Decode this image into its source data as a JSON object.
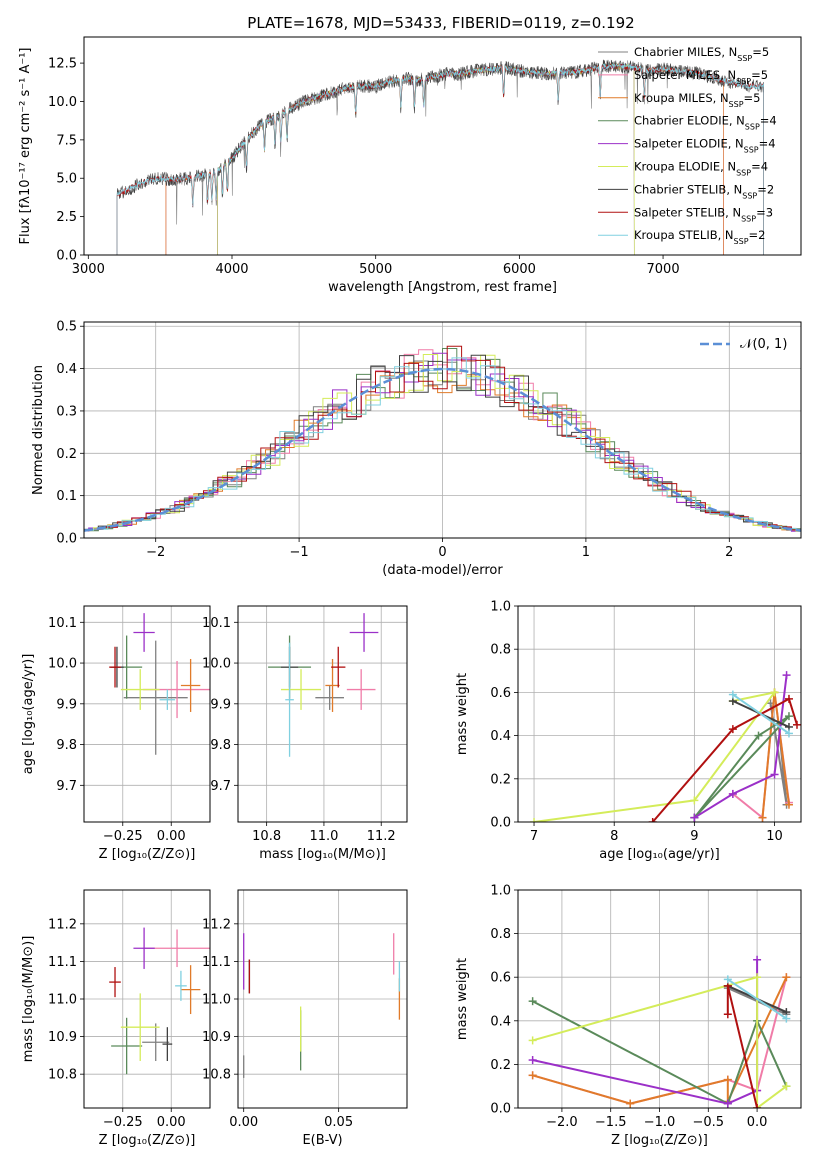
{
  "figure_title": "PLATE=1678, MJD=53433, FIBERID=0119, z=0.192",
  "colors": {
    "Chabrier MILES": "#808080",
    "Salpeter MILES": "#f07ca8",
    "Kroupa MILES": "#e07b2a",
    "Chabrier ELODIE": "#5a8a5a",
    "Salpeter ELODIE": "#9b30c8",
    "Kroupa ELODIE": "#d4ec5a",
    "Chabrier STELIB": "#404040",
    "Salpeter STELIB": "#b01010",
    "Kroupa STELIB": "#80d0e0",
    "normal": "#5b8fd6"
  },
  "chart_data": [
    {
      "id": "spectrum",
      "type": "line",
      "xlabel": "wavelength [Angstrom, rest frame]",
      "ylabel": "Flux [fλ10⁻¹⁷ erg cm⁻² s⁻¹ A⁻¹]",
      "xlim": [
        2970,
        7960
      ],
      "ylim": [
        0,
        14.2
      ],
      "xticks": [
        3000,
        4000,
        5000,
        6000,
        7000
      ],
      "yticks": [
        "0.0",
        "2.5",
        "5.0",
        "7.5",
        "10.0",
        "12.5"
      ],
      "legend_position": "right",
      "legend": [
        {
          "label": "Chabrier MILES, N",
          "sub": "SSP",
          "tail": "=5",
          "color_key": "Chabrier MILES"
        },
        {
          "label": "Salpeter MILES, N",
          "sub": "SSP",
          "tail": "=5",
          "color_key": "Salpeter MILES"
        },
        {
          "label": "Kroupa MILES, N",
          "sub": "SSP",
          "tail": "=5",
          "color_key": "Kroupa MILES"
        },
        {
          "label": "Chabrier ELODIE, N",
          "sub": "SSP",
          "tail": "=4",
          "color_key": "Chabrier ELODIE"
        },
        {
          "label": "Salpeter ELODIE, N",
          "sub": "SSP",
          "tail": "=4",
          "color_key": "Salpeter ELODIE"
        },
        {
          "label": "Kroupa ELODIE, N",
          "sub": "SSP",
          "tail": "=4",
          "color_key": "Kroupa ELODIE"
        },
        {
          "label": "Chabrier STELIB, N",
          "sub": "SSP",
          "tail": "=2",
          "color_key": "Chabrier STELIB"
        },
        {
          "label": "Salpeter STELIB, N",
          "sub": "SSP",
          "tail": "=3",
          "color_key": "Salpeter STELIB"
        },
        {
          "label": "Kroupa STELIB, N",
          "sub": "SSP",
          "tail": "=2",
          "color_key": "Kroupa STELIB"
        }
      ],
      "continuum": {
        "x": [
          3200,
          3300,
          3400,
          3500,
          3600,
          3700,
          3800,
          3900,
          4000,
          4100,
          4200,
          4300,
          4400,
          4500,
          4600,
          4700,
          4800,
          4900,
          5000,
          5100,
          5200,
          5300,
          5400,
          5500,
          5600,
          5700,
          5800,
          5900,
          6000,
          6100,
          6200,
          6300,
          6400,
          6500,
          6600,
          6700,
          6800,
          6900,
          7000,
          7100,
          7200,
          7300,
          7400,
          7500,
          7600
        ],
        "y": [
          3.9,
          4.4,
          4.8,
          5.0,
          4.9,
          5.0,
          5.2,
          5.5,
          6.3,
          7.5,
          8.5,
          9.0,
          9.5,
          10.0,
          10.3,
          10.6,
          10.9,
          11.0,
          11.0,
          11.3,
          11.5,
          11.4,
          11.6,
          11.8,
          11.8,
          12.0,
          12.1,
          12.2,
          12.0,
          11.9,
          11.8,
          11.9,
          11.9,
          12.1,
          12.3,
          12.3,
          12.2,
          12.0,
          12.1,
          12.0,
          11.9,
          11.7,
          11.4,
          11.2,
          11.0
        ]
      },
      "series_ranges": [
        {
          "name": "Chabrier MILES",
          "x_start": 3540,
          "x_end": 7420
        },
        {
          "name": "Salpeter MILES",
          "x_start": 3540,
          "x_end": 7420
        },
        {
          "name": "Kroupa MILES",
          "x_start": 3540,
          "x_end": 7420
        },
        {
          "name": "Chabrier ELODIE",
          "x_start": 3900,
          "x_end": 6800
        },
        {
          "name": "Salpeter ELODIE",
          "x_start": 3900,
          "x_end": 6800
        },
        {
          "name": "Kroupa ELODIE",
          "x_start": 3900,
          "x_end": 6800
        },
        {
          "name": "Chabrier STELIB",
          "x_start": 3200,
          "x_end": 7700
        },
        {
          "name": "Salpeter STELIB",
          "x_start": 3200,
          "x_end": 7700
        },
        {
          "name": "Kroupa STELIB",
          "x_start": 3200,
          "x_end": 7700
        }
      ]
    },
    {
      "id": "residuals",
      "type": "histogram",
      "xlabel": "(data-model)/error",
      "ylabel": "Normed distribution",
      "xlim": [
        -2.5,
        2.5
      ],
      "ylim": [
        0,
        0.51
      ],
      "xticks": [
        "−2",
        "−1",
        "0",
        "1",
        "2"
      ],
      "yticks": [
        "0.0",
        "0.1",
        "0.2",
        "0.3",
        "0.4",
        "0.5"
      ],
      "grid": true,
      "legend_position": "top-right",
      "normal_label": "𝒩(0, 1)",
      "bin_width": 0.1
    },
    {
      "id": "z-age",
      "type": "scatter",
      "xlabel": "Z [log₁₀(Z/Z⊙)]",
      "ylabel": "age  [log₁₀(age/yr)]",
      "xlim": [
        -0.45,
        0.2
      ],
      "ylim": [
        9.61,
        10.14
      ],
      "xticks": [
        "−0.25",
        "0.00"
      ],
      "yticks": [
        "9.7",
        "9.8",
        "9.9",
        "10.0",
        "10.1"
      ],
      "grid": true,
      "points": [
        {
          "s": "Chabrier MILES",
          "x": -0.08,
          "y": 9.915,
          "xe": 0.33,
          "ye": 0.28
        },
        {
          "s": "Salpeter MILES",
          "x": 0.03,
          "y": 9.935,
          "xe": 0.35,
          "ye": 0.14
        },
        {
          "s": "Kroupa MILES",
          "x": 0.1,
          "y": 9.945,
          "xe": 0.1,
          "ye": 0.13
        },
        {
          "s": "Chabrier ELODIE",
          "x": -0.23,
          "y": 9.99,
          "xe": 0.16,
          "ye": 0.155
        },
        {
          "s": "Salpeter ELODIE",
          "x": -0.14,
          "y": 10.075,
          "xe": 0.11,
          "ye": 0.095
        },
        {
          "s": "Kroupa ELODIE",
          "x": -0.16,
          "y": 9.935,
          "xe": 0.2,
          "ye": 0.1
        },
        {
          "s": "Chabrier STELIB",
          "x": -0.28,
          "y": 9.99,
          "xe": 0.07,
          "ye": 0.1
        },
        {
          "s": "Salpeter STELIB",
          "x": -0.29,
          "y": 9.99,
          "xe": 0.06,
          "ye": 0.1
        },
        {
          "s": "Kroupa STELIB",
          "x": -0.02,
          "y": 9.91,
          "xe": 0.08,
          "ye": 0.05
        }
      ]
    },
    {
      "id": "mass-age",
      "type": "scatter",
      "xlabel": "mass [log₁₀(M/M⊙)]",
      "ylabel": "",
      "xlim": [
        10.7,
        11.29
      ],
      "ylim": [
        9.61,
        10.14
      ],
      "xticks": [
        "10.8",
        "11.0",
        "11.2"
      ],
      "yticks": [
        "9.7",
        "9.8",
        "9.9",
        "10.0",
        "10.1"
      ],
      "grid": true,
      "points": [
        {
          "s": "Chabrier MILES",
          "x": 11.02,
          "y": 9.915,
          "xe": 0.1,
          "ye": 0.06
        },
        {
          "s": "Salpeter MILES",
          "x": 11.13,
          "y": 9.935,
          "xe": 0.1,
          "ye": 0.1
        },
        {
          "s": "Kroupa MILES",
          "x": 11.03,
          "y": 9.945,
          "xe": 0.05,
          "ye": 0.13
        },
        {
          "s": "Chabrier ELODIE",
          "x": 10.88,
          "y": 9.99,
          "xe": 0.15,
          "ye": 0.155
        },
        {
          "s": "Salpeter ELODIE",
          "x": 11.14,
          "y": 10.075,
          "xe": 0.1,
          "ye": 0.095
        },
        {
          "s": "Kroupa ELODIE",
          "x": 10.92,
          "y": 9.935,
          "xe": 0.14,
          "ye": 0.1
        },
        {
          "s": "Chabrier STELIB",
          "x": 10.88,
          "y": 9.99,
          "xe": 0.06,
          "ye": 0.1
        },
        {
          "s": "Salpeter STELIB",
          "x": 11.05,
          "y": 9.99,
          "xe": 0.05,
          "ye": 0.1
        },
        {
          "s": "Kroupa STELIB",
          "x": 10.88,
          "y": 9.91,
          "xe": 0.03,
          "ye": 0.28
        }
      ]
    },
    {
      "id": "age-weight",
      "type": "line",
      "xlabel": "age  [log₁₀(age/yr)]",
      "ylabel": "mass weight",
      "xlim": [
        6.8,
        10.33
      ],
      "ylim": [
        0,
        1.0
      ],
      "xticks": [
        "7",
        "8",
        "9",
        "10"
      ],
      "yticks": [
        "0.0",
        "0.2",
        "0.4",
        "0.6",
        "0.8",
        "1.0"
      ],
      "grid": true,
      "series": [
        {
          "s": "Chabrier MILES",
          "x": [
            9.95,
            10.15,
            10.05
          ],
          "y": [
            0.55,
            0.08,
            0.45
          ]
        },
        {
          "s": "Salpeter MILES",
          "x": [
            9.48,
            9.85,
            10.0,
            10.18
          ],
          "y": [
            0.13,
            0.02,
            0.6,
            0.09
          ]
        },
        {
          "s": "Kroupa MILES",
          "x": [
            9.85,
            10.0,
            10.18
          ],
          "y": [
            0.02,
            0.6,
            0.08
          ]
        },
        {
          "s": "Chabrier ELODIE",
          "x": [
            9.0,
            9.8,
            10.18,
            9.0
          ],
          "y": [
            0.02,
            0.4,
            0.49,
            0.02
          ]
        },
        {
          "s": "Salpeter ELODIE",
          "x": [
            9.0,
            9.48,
            10.0,
            10.15
          ],
          "y": [
            0.02,
            0.13,
            0.22,
            0.68
          ]
        },
        {
          "s": "Kroupa ELODIE",
          "x": [
            7.0,
            9.0,
            10.0,
            9.48
          ],
          "y": [
            0.0,
            0.1,
            0.6,
            0.56
          ]
        },
        {
          "s": "Chabrier STELIB",
          "x": [
            9.48,
            10.18
          ],
          "y": [
            0.56,
            0.44
          ]
        },
        {
          "s": "Salpeter STELIB",
          "x": [
            8.48,
            9.48,
            10.18,
            10.28
          ],
          "y": [
            0.0,
            0.43,
            0.57,
            0.45
          ]
        },
        {
          "s": "Kroupa STELIB",
          "x": [
            9.48,
            10.18
          ],
          "y": [
            0.59,
            0.41
          ]
        }
      ]
    },
    {
      "id": "z-mass",
      "type": "scatter",
      "xlabel": "Z [log₁₀(Z/Z⊙)]",
      "ylabel": "mass [log₁₀(M/M⊙)]",
      "xlim": [
        -0.45,
        0.2
      ],
      "ylim": [
        10.71,
        11.29
      ],
      "xticks": [
        "−0.25",
        "0.00"
      ],
      "yticks": [
        "10.8",
        "10.9",
        "11.0",
        "11.1",
        "11.2"
      ],
      "grid": true,
      "points": [
        {
          "s": "Chabrier MILES",
          "x": -0.08,
          "y": 10.885,
          "xe": 0.14,
          "ye": 0.1
        },
        {
          "s": "Salpeter MILES",
          "x": 0.03,
          "y": 11.135,
          "xe": 0.35,
          "ye": 0.1
        },
        {
          "s": "Kroupa MILES",
          "x": 0.1,
          "y": 11.025,
          "xe": 0.1,
          "ye": 0.13
        },
        {
          "s": "Chabrier ELODIE",
          "x": -0.23,
          "y": 10.875,
          "xe": 0.16,
          "ye": 0.15
        },
        {
          "s": "Salpeter ELODIE",
          "x": -0.14,
          "y": 11.135,
          "xe": 0.11,
          "ye": 0.11
        },
        {
          "s": "Kroupa ELODIE",
          "x": -0.16,
          "y": 10.925,
          "xe": 0.2,
          "ye": 0.18
        },
        {
          "s": "Chabrier STELIB",
          "x": -0.02,
          "y": 10.88,
          "xe": 0.05,
          "ye": 0.09
        },
        {
          "s": "Salpeter STELIB",
          "x": -0.29,
          "y": 11.045,
          "xe": 0.06,
          "ye": 0.08
        },
        {
          "s": "Kroupa STELIB",
          "x": 0.05,
          "y": 11.035,
          "xe": 0.06,
          "ye": 0.08
        }
      ]
    },
    {
      "id": "ebv-mass",
      "type": "scatter",
      "xlabel": "E(B-V)",
      "ylabel": "",
      "xlim": [
        -0.003,
        0.086
      ],
      "ylim": [
        10.71,
        11.29
      ],
      "xticks": [
        "0.00",
        "0.05"
      ],
      "yticks": [
        "10.8",
        "10.9",
        "11.0",
        "11.1",
        "11.2"
      ],
      "grid": true,
      "points": [
        {
          "s": "Chabrier MILES",
          "x": 0.0,
          "y": 10.82,
          "xe": 0,
          "ye": 0.06
        },
        {
          "s": "Salpeter MILES",
          "x": 0.079,
          "y": 11.12,
          "xe": 0,
          "ye": 0.11
        },
        {
          "s": "Kroupa MILES",
          "x": 0.082,
          "y": 11.0,
          "xe": 0,
          "ye": 0.11
        },
        {
          "s": "Chabrier ELODIE",
          "x": 0.03,
          "y": 10.89,
          "xe": 0,
          "ye": 0.16
        },
        {
          "s": "Salpeter ELODIE",
          "x": 0.0,
          "y": 11.1,
          "xe": 0,
          "ye": 0.15
        },
        {
          "s": "Kroupa ELODIE",
          "x": 0.03,
          "y": 10.92,
          "xe": 0,
          "ye": 0.12
        },
        {
          "s": "Chabrier STELIB",
          "x": 0.003,
          "y": 11.06,
          "xe": 0,
          "ye": 0.09
        },
        {
          "s": "Salpeter STELIB",
          "x": 0.003,
          "y": 11.06,
          "xe": 0,
          "ye": 0.09
        },
        {
          "s": "Kroupa STELIB",
          "x": 0.082,
          "y": 11.06,
          "xe": 0,
          "ye": 0.08
        }
      ]
    },
    {
      "id": "z-weight",
      "type": "line",
      "xlabel": "Z [log₁₀(Z/Z⊙)]",
      "ylabel": "mass weight",
      "xlim": [
        -2.45,
        0.45
      ],
      "ylim": [
        0,
        1.0
      ],
      "xticks": [
        "−2.0",
        "−1.5",
        "−1.0",
        "−0.5",
        "0.0"
      ],
      "yticks": [
        "0.0",
        "0.2",
        "0.4",
        "0.6",
        "0.8",
        "1.0"
      ],
      "grid": true,
      "series": [
        {
          "s": "Chabrier MILES",
          "x": [
            -0.3,
            0.3
          ],
          "y": [
            0.55,
            0.43
          ]
        },
        {
          "s": "Salpeter MILES",
          "x": [
            -2.3,
            -1.3,
            -0.3,
            0.0,
            0.3
          ],
          "y": [
            0.15,
            0.02,
            0.13,
            0.08,
            0.6
          ]
        },
        {
          "s": "Kroupa MILES",
          "x": [
            -2.3,
            -1.3,
            -0.3,
            -0.3,
            0.3
          ],
          "y": [
            0.15,
            0.02,
            0.13,
            0.03,
            0.6
          ]
        },
        {
          "s": "Chabrier ELODIE",
          "x": [
            -2.3,
            -0.3,
            0.0,
            0.3
          ],
          "y": [
            0.49,
            0.02,
            0.4,
            0.1
          ]
        },
        {
          "s": "Salpeter ELODIE",
          "x": [
            -2.3,
            -0.3,
            0.0,
            0.0
          ],
          "y": [
            0.22,
            0.02,
            0.08,
            0.68
          ]
        },
        {
          "s": "Kroupa ELODIE",
          "x": [
            -2.3,
            0.0,
            0.0,
            0.3
          ],
          "y": [
            0.31,
            0.6,
            0.0,
            0.1
          ]
        },
        {
          "s": "Chabrier STELIB",
          "x": [
            -0.3,
            0.3
          ],
          "y": [
            0.56,
            0.44
          ]
        },
        {
          "s": "Salpeter STELIB",
          "x": [
            -0.3,
            -0.3,
            0.0
          ],
          "y": [
            0.43,
            0.56,
            0.0
          ]
        },
        {
          "s": "Kroupa STELIB",
          "x": [
            -0.3,
            0.3
          ],
          "y": [
            0.59,
            0.41
          ]
        }
      ]
    }
  ]
}
